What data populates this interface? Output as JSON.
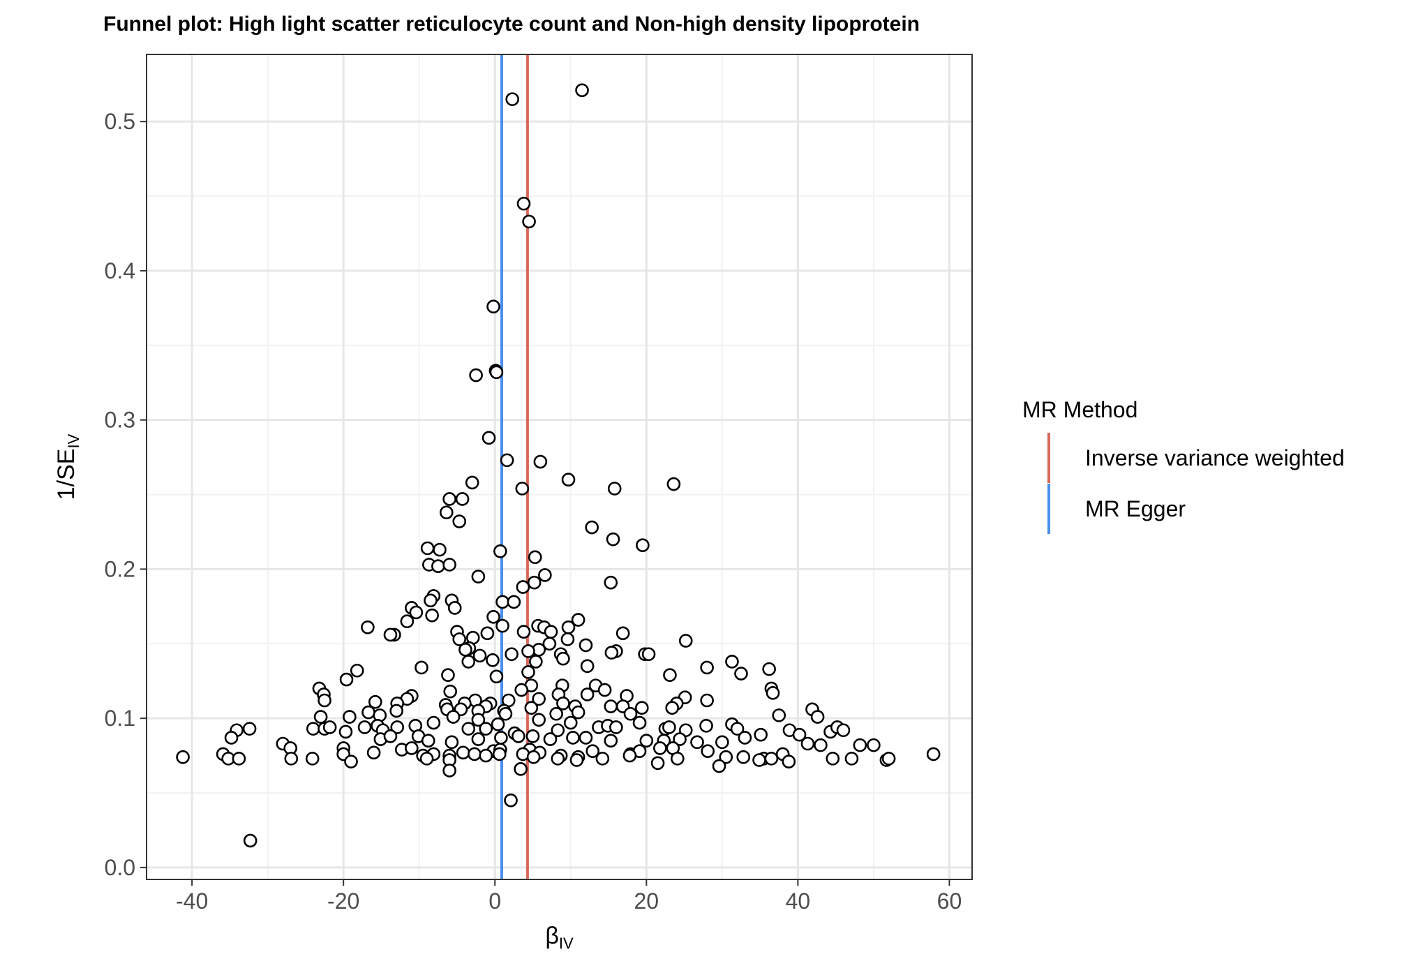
{
  "chart_data": {
    "type": "scatter",
    "title": "Funnel plot: High light scatter reticulocyte count and Non-high density lipoprotein",
    "xlabel": {
      "main": "β",
      "sub": "IV"
    },
    "ylabel": {
      "main": "1/SE",
      "sub": "IV"
    },
    "xlim": [
      -46,
      63
    ],
    "ylim": [
      -0.008,
      0.545
    ],
    "x_ticks": [
      -40,
      -20,
      0,
      20,
      40,
      60
    ],
    "x_tick_labels": [
      "-40",
      "-20",
      "0",
      "20",
      "40",
      "60"
    ],
    "y_ticks": [
      0.0,
      0.1,
      0.2,
      0.3,
      0.4,
      0.5
    ],
    "y_tick_labels": [
      "0.0",
      "0.1",
      "0.2",
      "0.3",
      "0.4",
      "0.5"
    ],
    "grid": true,
    "legend": {
      "title": "MR Method",
      "position": "right",
      "entries": [
        {
          "label": "Inverse variance weighted",
          "color": "#d9685a"
        },
        {
          "label": "MR Egger",
          "color": "#4a8ff0"
        }
      ]
    },
    "vlines": [
      {
        "method": "Inverse variance weighted",
        "x": 4.3,
        "color": "#d9685a"
      },
      {
        "method": "MR Egger",
        "x": 0.9,
        "color": "#4a8ff0"
      }
    ],
    "points": [
      [
        2.3,
        0.515
      ],
      [
        11.5,
        0.521
      ],
      [
        3.8,
        0.445
      ],
      [
        4.5,
        0.433
      ],
      [
        -0.2,
        0.376
      ],
      [
        0.1,
        0.333
      ],
      [
        0.2,
        0.332
      ],
      [
        -2.5,
        0.33
      ],
      [
        -0.8,
        0.288
      ],
      [
        1.6,
        0.273
      ],
      [
        6.0,
        0.272
      ],
      [
        9.7,
        0.26
      ],
      [
        23.6,
        0.257
      ],
      [
        -3.0,
        0.258
      ],
      [
        3.6,
        0.254
      ],
      [
        15.8,
        0.254
      ],
      [
        -6.0,
        0.247
      ],
      [
        -4.3,
        0.247
      ],
      [
        -6.4,
        0.238
      ],
      [
        -4.7,
        0.232
      ],
      [
        12.8,
        0.228
      ],
      [
        15.6,
        0.22
      ],
      [
        19.5,
        0.216
      ],
      [
        -8.9,
        0.214
      ],
      [
        -7.3,
        0.213
      ],
      [
        0.7,
        0.212
      ],
      [
        5.3,
        0.208
      ],
      [
        -8.7,
        0.203
      ],
      [
        -7.5,
        0.202
      ],
      [
        -6.0,
        0.203
      ],
      [
        6.6,
        0.196
      ],
      [
        -2.2,
        0.195
      ],
      [
        15.3,
        0.191
      ],
      [
        5.2,
        0.191
      ],
      [
        3.7,
        0.188
      ],
      [
        -8.1,
        0.182
      ],
      [
        -8.5,
        0.179
      ],
      [
        -5.7,
        0.179
      ],
      [
        1.0,
        0.178
      ],
      [
        2.5,
        0.178
      ],
      [
        -5.3,
        0.174
      ],
      [
        -11.0,
        0.174
      ],
      [
        -10.4,
        0.171
      ],
      [
        -8.3,
        0.169
      ],
      [
        -0.2,
        0.168
      ],
      [
        11.0,
        0.166
      ],
      [
        -11.6,
        0.165
      ],
      [
        1.0,
        0.162
      ],
      [
        5.7,
        0.162
      ],
      [
        6.5,
        0.161
      ],
      [
        9.7,
        0.161
      ],
      [
        -16.8,
        0.161
      ],
      [
        -5.0,
        0.158
      ],
      [
        3.8,
        0.158
      ],
      [
        7.4,
        0.158
      ],
      [
        16.9,
        0.157
      ],
      [
        -13.3,
        0.156
      ],
      [
        -13.8,
        0.156
      ],
      [
        -1.0,
        0.157
      ],
      [
        9.6,
        0.153
      ],
      [
        -4.7,
        0.153
      ],
      [
        25.2,
        0.152
      ],
      [
        7.2,
        0.15
      ],
      [
        12.0,
        0.149
      ],
      [
        -2.9,
        0.154
      ],
      [
        -3.4,
        0.147
      ],
      [
        -3.9,
        0.146
      ],
      [
        5.8,
        0.146
      ],
      [
        4.4,
        0.145
      ],
      [
        16.0,
        0.145
      ],
      [
        15.4,
        0.144
      ],
      [
        19.8,
        0.143
      ],
      [
        20.3,
        0.143
      ],
      [
        8.7,
        0.143
      ],
      [
        -2.0,
        0.142
      ],
      [
        2.2,
        0.143
      ],
      [
        9.0,
        0.14
      ],
      [
        -0.3,
        0.139
      ],
      [
        -3.5,
        0.138
      ],
      [
        5.4,
        0.138
      ],
      [
        31.3,
        0.138
      ],
      [
        -9.7,
        0.134
      ],
      [
        28.0,
        0.134
      ],
      [
        36.2,
        0.133
      ],
      [
        12.2,
        0.135
      ],
      [
        -18.2,
        0.132
      ],
      [
        4.4,
        0.131
      ],
      [
        -6.2,
        0.129
      ],
      [
        23.1,
        0.129
      ],
      [
        32.5,
        0.13
      ],
      [
        0.2,
        0.128
      ],
      [
        -19.6,
        0.126
      ],
      [
        4.8,
        0.122
      ],
      [
        8.9,
        0.122
      ],
      [
        13.3,
        0.122
      ],
      [
        3.5,
        0.119
      ],
      [
        14.5,
        0.119
      ],
      [
        -23.2,
        0.12
      ],
      [
        36.5,
        0.12
      ],
      [
        -22.6,
        0.116
      ],
      [
        36.7,
        0.117
      ],
      [
        -5.9,
        0.118
      ],
      [
        -11.0,
        0.115
      ],
      [
        8.4,
        0.116
      ],
      [
        12.2,
        0.116
      ],
      [
        17.4,
        0.115
      ],
      [
        25.1,
        0.114
      ],
      [
        -22.5,
        0.112
      ],
      [
        -15.8,
        0.111
      ],
      [
        -11.6,
        0.113
      ],
      [
        -2.6,
        0.112
      ],
      [
        5.8,
        0.113
      ],
      [
        1.8,
        0.112
      ],
      [
        -12.9,
        0.11
      ],
      [
        -6.5,
        0.109
      ],
      [
        -4.0,
        0.11
      ],
      [
        9.0,
        0.11
      ],
      [
        24.0,
        0.11
      ],
      [
        28.0,
        0.112
      ],
      [
        -0.6,
        0.11
      ],
      [
        -1.2,
        0.108
      ],
      [
        10.6,
        0.108
      ],
      [
        16.9,
        0.108
      ],
      [
        15.3,
        0.108
      ],
      [
        19.4,
        0.107
      ],
      [
        23.4,
        0.107
      ],
      [
        4.8,
        0.107
      ],
      [
        1.2,
        0.105
      ],
      [
        -4.5,
        0.106
      ],
      [
        -6.3,
        0.106
      ],
      [
        -13.0,
        0.105
      ],
      [
        -16.7,
        0.104
      ],
      [
        -2.2,
        0.105
      ],
      [
        1.4,
        0.103
      ],
      [
        11.0,
        0.104
      ],
      [
        17.9,
        0.103
      ],
      [
        -19.2,
        0.101
      ],
      [
        -23.0,
        0.101
      ],
      [
        -15.2,
        0.102
      ],
      [
        37.5,
        0.102
      ],
      [
        41.9,
        0.106
      ],
      [
        42.6,
        0.101
      ],
      [
        8.1,
        0.103
      ],
      [
        -10.5,
        0.095
      ],
      [
        -8.1,
        0.097
      ],
      [
        -5.5,
        0.101
      ],
      [
        -2.2,
        0.099
      ],
      [
        0.4,
        0.096
      ],
      [
        5.8,
        0.099
      ],
      [
        10.0,
        0.097
      ],
      [
        13.7,
        0.094
      ],
      [
        19.1,
        0.097
      ],
      [
        22.5,
        0.093
      ],
      [
        27.9,
        0.095
      ],
      [
        31.3,
        0.096
      ],
      [
        -34.1,
        0.092
      ],
      [
        -32.4,
        0.093
      ],
      [
        -24.0,
        0.093
      ],
      [
        -22.5,
        0.093
      ],
      [
        -21.8,
        0.094
      ],
      [
        -17.2,
        0.094
      ],
      [
        -15.5,
        0.095
      ],
      [
        -14.8,
        0.092
      ],
      [
        -12.9,
        0.094
      ],
      [
        -19.7,
        0.091
      ],
      [
        -3.5,
        0.093
      ],
      [
        -1.2,
        0.093
      ],
      [
        2.6,
        0.09
      ],
      [
        8.3,
        0.092
      ],
      [
        14.9,
        0.095
      ],
      [
        16.0,
        0.094
      ],
      [
        23.0,
        0.094
      ],
      [
        25.2,
        0.092
      ],
      [
        32.0,
        0.093
      ],
      [
        38.9,
        0.092
      ],
      [
        44.3,
        0.091
      ],
      [
        45.2,
        0.094
      ],
      [
        46.0,
        0.092
      ],
      [
        -34.8,
        0.087
      ],
      [
        -28.0,
        0.083
      ],
      [
        -27.0,
        0.08
      ],
      [
        -20.0,
        0.08
      ],
      [
        -15.1,
        0.086
      ],
      [
        -13.8,
        0.088
      ],
      [
        -10.1,
        0.088
      ],
      [
        -8.8,
        0.085
      ],
      [
        -5.7,
        0.084
      ],
      [
        -2.2,
        0.086
      ],
      [
        0.8,
        0.087
      ],
      [
        3.1,
        0.088
      ],
      [
        5.0,
        0.088
      ],
      [
        7.3,
        0.086
      ],
      [
        10.3,
        0.087
      ],
      [
        12.0,
        0.087
      ],
      [
        15.3,
        0.085
      ],
      [
        20.0,
        0.085
      ],
      [
        22.3,
        0.085
      ],
      [
        24.4,
        0.086
      ],
      [
        26.7,
        0.084
      ],
      [
        30.0,
        0.084
      ],
      [
        33.0,
        0.087
      ],
      [
        35.1,
        0.089
      ],
      [
        40.2,
        0.089
      ],
      [
        41.3,
        0.083
      ],
      [
        43.0,
        0.082
      ],
      [
        48.2,
        0.082
      ],
      [
        50.0,
        0.082
      ],
      [
        -16.0,
        0.077
      ],
      [
        -12.3,
        0.079
      ],
      [
        -11.0,
        0.08
      ],
      [
        -8.1,
        0.076
      ],
      [
        -6.0,
        0.075
      ],
      [
        -4.2,
        0.077
      ],
      [
        -2.7,
        0.076
      ],
      [
        -0.2,
        0.078
      ],
      [
        0.7,
        0.079
      ],
      [
        4.6,
        0.079
      ],
      [
        5.9,
        0.077
      ],
      [
        8.7,
        0.075
      ],
      [
        11.0,
        0.074
      ],
      [
        12.9,
        0.078
      ],
      [
        17.9,
        0.076
      ],
      [
        19.1,
        0.078
      ],
      [
        21.8,
        0.08
      ],
      [
        23.5,
        0.08
      ],
      [
        28.1,
        0.078
      ],
      [
        30.5,
        0.074
      ],
      [
        32.8,
        0.074
      ],
      [
        35.5,
        0.073
      ],
      [
        38.0,
        0.076
      ],
      [
        -41.2,
        0.074
      ],
      [
        -35.9,
        0.076
      ],
      [
        -35.2,
        0.073
      ],
      [
        -33.8,
        0.073
      ],
      [
        -26.9,
        0.073
      ],
      [
        -24.1,
        0.073
      ],
      [
        -20.0,
        0.076
      ],
      [
        -19.0,
        0.071
      ],
      [
        -9.5,
        0.075
      ],
      [
        -9.0,
        0.073
      ],
      [
        -6.0,
        0.072
      ],
      [
        -1.2,
        0.075
      ],
      [
        0.6,
        0.076
      ],
      [
        3.7,
        0.076
      ],
      [
        5.1,
        0.074
      ],
      [
        8.3,
        0.073
      ],
      [
        10.8,
        0.072
      ],
      [
        14.2,
        0.073
      ],
      [
        17.8,
        0.075
      ],
      [
        21.5,
        0.07
      ],
      [
        24.1,
        0.073
      ],
      [
        29.6,
        0.068
      ],
      [
        34.9,
        0.072
      ],
      [
        36.5,
        0.073
      ],
      [
        38.8,
        0.071
      ],
      [
        44.6,
        0.073
      ],
      [
        47.1,
        0.073
      ],
      [
        51.7,
        0.072
      ],
      [
        52.0,
        0.073
      ],
      [
        57.9,
        0.076
      ],
      [
        -6.0,
        0.065
      ],
      [
        3.4,
        0.066
      ],
      [
        2.1,
        0.045
      ],
      [
        -32.3,
        0.018
      ]
    ]
  }
}
